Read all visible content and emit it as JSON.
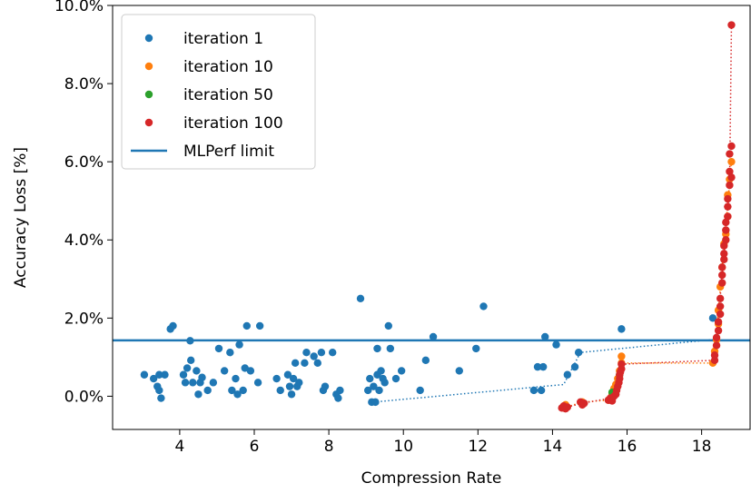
{
  "chart_data": {
    "type": "scatter",
    "xlabel": "Compression Rate",
    "ylabel": "Accuracy Loss [%]",
    "xlim": [
      2.2,
      19.3
    ],
    "ylim": [
      -0.85,
      10.0
    ],
    "xticks": [
      4,
      6,
      8,
      10,
      12,
      14,
      16,
      18
    ],
    "xtick_labels": [
      "4",
      "6",
      "8",
      "10",
      "12",
      "14",
      "16",
      "18"
    ],
    "yticks": [
      0,
      2,
      4,
      6,
      8,
      10
    ],
    "ytick_labels": [
      "0.0%",
      "2.0%",
      "4.0%",
      "6.0%",
      "8.0%",
      "10.0%"
    ],
    "legend_position": "upper-left",
    "grid": false,
    "colors": {
      "iteration_1": "#1f77b4",
      "iteration_10": "#ff7f0e",
      "iteration_50": "#2ca02c",
      "iteration_100": "#d62728",
      "limit": "#1f77b4"
    },
    "hline": {
      "name": "MLPerf limit",
      "y": 1.43
    },
    "series": [
      {
        "name": "iteration 1",
        "color": "#1f77b4",
        "points": [
          [
            3.05,
            0.55
          ],
          [
            3.3,
            0.45
          ],
          [
            3.4,
            0.25
          ],
          [
            3.45,
            0.55
          ],
          [
            3.45,
            0.15
          ],
          [
            3.5,
            -0.05
          ],
          [
            3.6,
            0.55
          ],
          [
            3.75,
            1.72
          ],
          [
            3.82,
            1.8
          ],
          [
            4.1,
            0.55
          ],
          [
            4.15,
            0.35
          ],
          [
            4.2,
            0.72
          ],
          [
            4.28,
            1.42
          ],
          [
            4.3,
            0.92
          ],
          [
            4.35,
            0.35
          ],
          [
            4.45,
            0.65
          ],
          [
            4.5,
            0.05
          ],
          [
            4.55,
            0.35
          ],
          [
            4.6,
            0.48
          ],
          [
            4.75,
            0.15
          ],
          [
            4.9,
            0.35
          ],
          [
            5.05,
            1.22
          ],
          [
            5.2,
            0.65
          ],
          [
            5.35,
            1.12
          ],
          [
            5.4,
            0.15
          ],
          [
            5.5,
            0.45
          ],
          [
            5.55,
            0.05
          ],
          [
            5.6,
            1.32
          ],
          [
            5.7,
            0.15
          ],
          [
            5.75,
            0.72
          ],
          [
            5.8,
            1.8
          ],
          [
            5.9,
            0.65
          ],
          [
            6.1,
            0.35
          ],
          [
            6.15,
            1.8
          ],
          [
            6.6,
            0.45
          ],
          [
            6.7,
            0.15
          ],
          [
            6.9,
            0.55
          ],
          [
            6.95,
            0.25
          ],
          [
            7.0,
            0.05
          ],
          [
            7.05,
            0.45
          ],
          [
            7.1,
            0.85
          ],
          [
            7.15,
            0.25
          ],
          [
            7.2,
            0.35
          ],
          [
            7.35,
            0.85
          ],
          [
            7.4,
            1.12
          ],
          [
            7.6,
            1.02
          ],
          [
            7.7,
            0.85
          ],
          [
            7.8,
            1.12
          ],
          [
            7.85,
            0.15
          ],
          [
            7.9,
            0.25
          ],
          [
            8.1,
            1.12
          ],
          [
            8.2,
            0.05
          ],
          [
            8.25,
            -0.05
          ],
          [
            8.3,
            0.15
          ],
          [
            8.85,
            2.5
          ],
          [
            9.05,
            0.15
          ],
          [
            9.1,
            0.45
          ],
          [
            9.15,
            -0.15
          ],
          [
            9.2,
            0.25
          ],
          [
            9.25,
            -0.15
          ],
          [
            9.3,
            1.22
          ],
          [
            9.3,
            0.55
          ],
          [
            9.35,
            0.15
          ],
          [
            9.4,
            0.65
          ],
          [
            9.45,
            0.45
          ],
          [
            9.5,
            0.35
          ],
          [
            9.6,
            1.8
          ],
          [
            9.65,
            1.22
          ],
          [
            9.8,
            0.45
          ],
          [
            9.95,
            0.65
          ],
          [
            10.45,
            0.15
          ],
          [
            10.6,
            0.92
          ],
          [
            10.8,
            1.52
          ],
          [
            11.5,
            0.65
          ],
          [
            11.95,
            1.22
          ],
          [
            12.15,
            2.3
          ],
          [
            13.5,
            0.15
          ],
          [
            13.6,
            0.75
          ],
          [
            13.7,
            0.15
          ],
          [
            13.75,
            0.75
          ],
          [
            13.8,
            1.52
          ],
          [
            14.1,
            1.32
          ],
          [
            14.4,
            0.55
          ],
          [
            14.6,
            0.75
          ],
          [
            14.7,
            1.12
          ],
          [
            15.85,
            1.72
          ],
          [
            18.3,
            2.0
          ]
        ]
      },
      {
        "name": "iteration 10",
        "color": "#ff7f0e",
        "points": [
          [
            14.3,
            -0.3
          ],
          [
            14.35,
            -0.22
          ],
          [
            14.8,
            -0.15
          ],
          [
            15.5,
            -0.1
          ],
          [
            15.6,
            0.05
          ],
          [
            15.65,
            0.2
          ],
          [
            15.7,
            0.3
          ],
          [
            15.75,
            0.45
          ],
          [
            15.8,
            0.65
          ],
          [
            15.85,
            0.85
          ],
          [
            15.85,
            1.02
          ],
          [
            18.3,
            0.85
          ],
          [
            18.35,
            1.15
          ],
          [
            18.4,
            1.45
          ],
          [
            18.45,
            1.85
          ],
          [
            18.45,
            2.2
          ],
          [
            18.5,
            2.8
          ],
          [
            18.55,
            3.3
          ],
          [
            18.6,
            3.9
          ],
          [
            18.65,
            4.15
          ],
          [
            18.7,
            4.6
          ],
          [
            18.7,
            5.15
          ],
          [
            18.75,
            5.55
          ],
          [
            18.8,
            6.0
          ]
        ]
      },
      {
        "name": "iteration 50",
        "color": "#2ca02c",
        "points": [
          [
            15.6,
            0.1
          ],
          [
            15.8,
            0.55
          ]
        ]
      },
      {
        "name": "iteration 100",
        "color": "#d62728",
        "points": [
          [
            14.25,
            -0.3
          ],
          [
            14.3,
            -0.25
          ],
          [
            14.35,
            -0.32
          ],
          [
            14.4,
            -0.28
          ],
          [
            14.75,
            -0.15
          ],
          [
            14.8,
            -0.22
          ],
          [
            14.85,
            -0.18
          ],
          [
            15.5,
            -0.1
          ],
          [
            15.55,
            -0.05
          ],
          [
            15.6,
            -0.12
          ],
          [
            15.65,
            0.0
          ],
          [
            15.7,
            0.05
          ],
          [
            15.72,
            0.15
          ],
          [
            15.75,
            0.25
          ],
          [
            15.78,
            0.35
          ],
          [
            15.8,
            0.45
          ],
          [
            15.8,
            0.55
          ],
          [
            15.82,
            0.62
          ],
          [
            15.85,
            0.7
          ],
          [
            15.85,
            0.82
          ],
          [
            18.35,
            0.92
          ],
          [
            18.35,
            1.05
          ],
          [
            18.4,
            1.3
          ],
          [
            18.4,
            1.5
          ],
          [
            18.45,
            1.68
          ],
          [
            18.45,
            1.9
          ],
          [
            18.5,
            2.1
          ],
          [
            18.5,
            2.3
          ],
          [
            18.5,
            2.5
          ],
          [
            18.55,
            2.9
          ],
          [
            18.55,
            3.1
          ],
          [
            18.55,
            3.3
          ],
          [
            18.6,
            3.5
          ],
          [
            18.6,
            3.65
          ],
          [
            18.6,
            3.85
          ],
          [
            18.65,
            4.0
          ],
          [
            18.65,
            4.25
          ],
          [
            18.65,
            4.45
          ],
          [
            18.7,
            4.6
          ],
          [
            18.7,
            4.85
          ],
          [
            18.7,
            5.05
          ],
          [
            18.75,
            5.4
          ],
          [
            18.75,
            5.75
          ],
          [
            18.75,
            6.2
          ],
          [
            18.8,
            5.6
          ],
          [
            18.8,
            6.4
          ],
          [
            18.8,
            9.5
          ]
        ]
      }
    ],
    "trend_lines": [
      {
        "color": "#1f77b4",
        "points": [
          [
            9.2,
            -0.15
          ],
          [
            14.3,
            0.3
          ],
          [
            14.75,
            1.12
          ],
          [
            18.3,
            1.45
          ]
        ]
      },
      {
        "color": "#ff7f0e",
        "points": [
          [
            14.3,
            -0.3
          ],
          [
            14.8,
            -0.15
          ],
          [
            15.5,
            -0.1
          ],
          [
            15.85,
            0.85
          ],
          [
            18.3,
            0.85
          ],
          [
            18.45,
            2.2
          ],
          [
            18.8,
            6.0
          ]
        ]
      },
      {
        "color": "#d62728",
        "points": [
          [
            14.3,
            -0.3
          ],
          [
            14.8,
            -0.18
          ],
          [
            15.55,
            -0.05
          ],
          [
            15.85,
            0.82
          ],
          [
            18.35,
            0.92
          ],
          [
            18.6,
            3.65
          ],
          [
            18.75,
            5.4
          ],
          [
            18.8,
            9.5
          ]
        ]
      }
    ]
  }
}
